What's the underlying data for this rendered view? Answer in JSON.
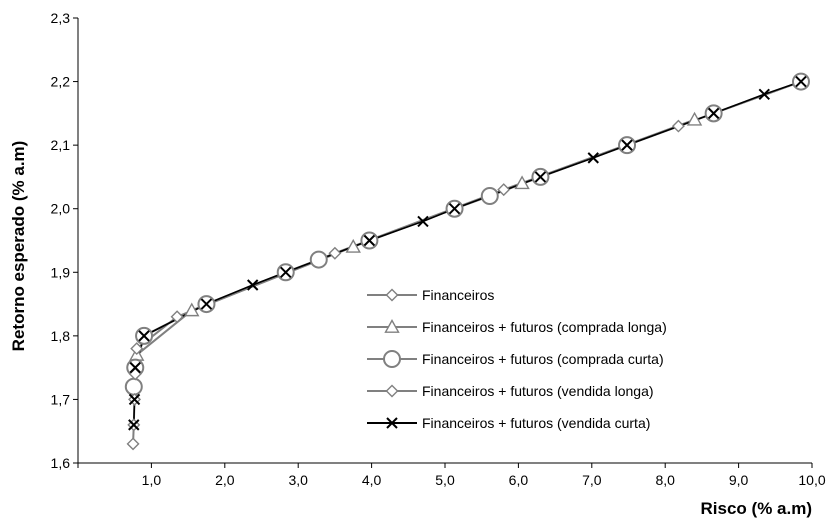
{
  "chart_data": {
    "type": "line",
    "title": "",
    "xlabel": "Risco (% a.m)",
    "ylabel": "Retorno esperado (% a.m)",
    "xlim": [
      0.0,
      10.0
    ],
    "ylim": [
      1.6,
      2.3
    ],
    "x_ticks": [
      "1,0",
      "2,0",
      "3,0",
      "4,0",
      "5,0",
      "6,0",
      "7,0",
      "8,0",
      "9,0",
      "10,0"
    ],
    "y_ticks": [
      "1,6",
      "1,7",
      "1,8",
      "1,9",
      "2,0",
      "2,1",
      "2,2",
      "2,3"
    ],
    "grid": false,
    "legend_position": "lower-right",
    "series": [
      {
        "name": "Financeiros",
        "marker": "diamond",
        "color": "#808080",
        "points": [
          [
            0.9,
            1.8
          ],
          [
            1.75,
            1.85
          ],
          [
            2.83,
            1.9
          ],
          [
            3.97,
            1.95
          ],
          [
            5.13,
            2.0
          ],
          [
            6.3,
            2.05
          ],
          [
            7.48,
            2.1
          ],
          [
            8.66,
            2.15
          ],
          [
            9.85,
            2.2
          ]
        ]
      },
      {
        "name": "Financeiros + futuros (comprada longa)",
        "marker": "triangle",
        "color": "#808080",
        "points": [
          [
            0.8,
            1.77
          ],
          [
            1.55,
            1.84
          ],
          [
            3.75,
            1.94
          ],
          [
            6.05,
            2.04
          ],
          [
            8.4,
            2.14
          ]
        ]
      },
      {
        "name": "Financeiros + futuros (comprada curta)",
        "marker": "circle",
        "color": "#808080",
        "points": [
          [
            0.76,
            1.72
          ],
          [
            0.78,
            1.75
          ],
          [
            0.9,
            1.8
          ],
          [
            1.75,
            1.85
          ],
          [
            2.83,
            1.9
          ],
          [
            3.28,
            1.92
          ],
          [
            3.97,
            1.95
          ],
          [
            5.13,
            2.0
          ],
          [
            5.61,
            2.02
          ],
          [
            6.3,
            2.05
          ],
          [
            7.48,
            2.1
          ],
          [
            8.66,
            2.15
          ],
          [
            9.85,
            2.2
          ]
        ]
      },
      {
        "name": "Financeiros + futuros (vendida longa)",
        "marker": "diamond",
        "color": "#808080",
        "points": [
          [
            0.75,
            1.63
          ],
          [
            0.76,
            1.66
          ],
          [
            0.77,
            1.7
          ],
          [
            0.78,
            1.74
          ],
          [
            0.8,
            1.78
          ],
          [
            1.35,
            1.83
          ],
          [
            3.5,
            1.93
          ],
          [
            5.8,
            2.03
          ],
          [
            8.18,
            2.13
          ]
        ]
      },
      {
        "name": "Financeiros + futuros (vendida curta)",
        "marker": "x",
        "color": "#000000",
        "points": [
          [
            0.76,
            1.66
          ],
          [
            0.77,
            1.7
          ],
          [
            0.78,
            1.75
          ],
          [
            0.9,
            1.8
          ],
          [
            1.75,
            1.85
          ],
          [
            2.38,
            1.88
          ],
          [
            2.83,
            1.9
          ],
          [
            3.97,
            1.95
          ],
          [
            4.7,
            1.98
          ],
          [
            5.13,
            2.0
          ],
          [
            6.3,
            2.05
          ],
          [
            7.02,
            2.08
          ],
          [
            7.48,
            2.1
          ],
          [
            8.66,
            2.15
          ],
          [
            9.35,
            2.18
          ],
          [
            9.85,
            2.2
          ]
        ]
      }
    ]
  }
}
